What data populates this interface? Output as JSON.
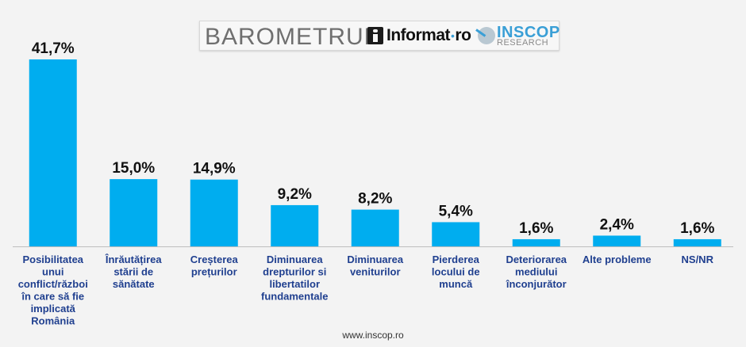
{
  "header": {
    "barometrul": "BAROMETRUL",
    "informat": "Informat",
    "informat_suffix": "ro",
    "inscop_name": "INSCOP",
    "inscop_sub": "RESEARCH"
  },
  "footer": {
    "url": "www.inscop.ro"
  },
  "colors": {
    "bar": "#00adef",
    "label": "#1f3f8f",
    "value": "#111111",
    "axis": "#bdbdbd"
  },
  "chart_data": {
    "type": "bar",
    "categories": [
      "Posibilitatea unui conflict/război în care să fie implicată România",
      "Înrăutățirea stării de sănătate",
      "Creșterea prețurilor",
      "Diminuarea drepturilor si libertatilor fundamentale",
      "Diminuarea veniturilor",
      "Pierderea locului de muncă",
      "Deteriorarea mediului înconjurător",
      "Alte probleme",
      "NS/NR"
    ],
    "category_lines": [
      [
        "Posibilitatea",
        "unui",
        "conflict/război",
        "în care să fie",
        "implicată",
        "România"
      ],
      [
        "Înrăutățirea",
        "stării de",
        "sănătate"
      ],
      [
        "Creșterea",
        "prețurilor"
      ],
      [
        "Diminuarea",
        "drepturilor si",
        "libertatilor",
        "fundamentale"
      ],
      [
        "Diminuarea",
        "veniturilor"
      ],
      [
        "Pierderea",
        "locului de",
        "muncă"
      ],
      [
        "Deteriorarea",
        "mediului",
        "înconjurător"
      ],
      [
        "Alte probleme"
      ],
      [
        "NS/NR"
      ]
    ],
    "values": [
      41.7,
      15.0,
      14.9,
      9.2,
      8.2,
      5.4,
      1.6,
      2.4,
      1.6
    ],
    "data_labels": [
      "41,7%",
      "15,0%",
      "14,9%",
      "9,2%",
      "8,2%",
      "5,4%",
      "1,6%",
      "2,4%",
      "1,6%"
    ],
    "ylim": [
      0,
      41.7
    ],
    "grid": false,
    "legend": "none"
  }
}
